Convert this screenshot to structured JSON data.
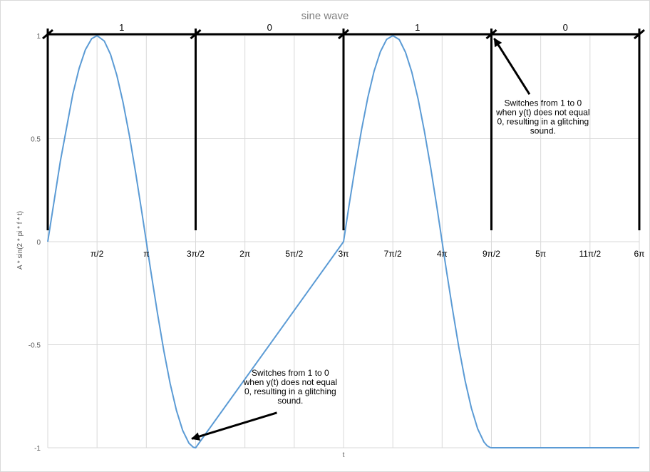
{
  "chart_data": {
    "type": "line",
    "title": "sine wave",
    "xlabel": "t",
    "ylabel": "A * sin(2 * pi * f * t)",
    "xlim": [
      0,
      18.85
    ],
    "ylim": [
      -1,
      1
    ],
    "y_ticks": [
      {
        "value": 1,
        "label": "1"
      },
      {
        "value": 0.5,
        "label": "0.5"
      },
      {
        "value": 0,
        "label": "0"
      },
      {
        "value": -0.5,
        "label": "-0.5"
      },
      {
        "value": -1,
        "label": "-1"
      }
    ],
    "x_ticks": [
      {
        "value": 1.5708,
        "label": "π/2"
      },
      {
        "value": 3.1416,
        "label": "π"
      },
      {
        "value": 4.7124,
        "label": "3π/2"
      },
      {
        "value": 6.2832,
        "label": "2π"
      },
      {
        "value": 7.854,
        "label": "5π/2"
      },
      {
        "value": 9.4248,
        "label": "3π"
      },
      {
        "value": 10.9956,
        "label": "7π/2"
      },
      {
        "value": 12.5664,
        "label": "4π"
      },
      {
        "value": 14.1372,
        "label": "9π/2"
      },
      {
        "value": 15.708,
        "label": "5π"
      },
      {
        "value": 17.2788,
        "label": "11π/2"
      },
      {
        "value": 18.8496,
        "label": "6π"
      }
    ],
    "grid": true,
    "legend": "none",
    "series": [
      {
        "x": [
          0,
          0.4,
          0.8,
          1.0,
          1.2,
          1.4,
          1.5708,
          1.8,
          2.0,
          2.2,
          2.4,
          2.6,
          2.8,
          3.0,
          3.1416,
          3.3,
          3.5,
          3.7,
          3.9,
          4.1,
          4.3,
          4.5,
          4.64,
          4.7124,
          9.4248,
          9.6,
          9.8,
          10.0,
          10.2,
          10.4,
          10.6,
          10.8,
          10.9956,
          11.2,
          11.4,
          11.6,
          11.8,
          12.0,
          12.2,
          12.4,
          12.5664,
          12.7,
          12.9,
          13.1,
          13.3,
          13.5,
          13.7,
          13.9,
          14.0,
          14.1,
          14.1372,
          18.8496
        ],
        "y": [
          0,
          0.389,
          0.717,
          0.841,
          0.932,
          0.985,
          1,
          0.974,
          0.909,
          0.808,
          0.675,
          0.516,
          0.335,
          0.141,
          0,
          -0.158,
          -0.351,
          -0.53,
          -0.688,
          -0.818,
          -0.916,
          -0.978,
          -0.998,
          -1,
          0,
          0.175,
          0.366,
          0.544,
          0.7,
          0.828,
          0.922,
          0.982,
          1,
          0.981,
          0.919,
          0.823,
          0.693,
          0.537,
          0.361,
          0.168,
          0,
          -0.136,
          -0.33,
          -0.513,
          -0.675,
          -0.808,
          -0.908,
          -0.972,
          -0.99,
          -0.999,
          -1,
          -1
        ]
      }
    ],
    "bit_segments": [
      {
        "start": 0,
        "end": 4.7124,
        "label": "1"
      },
      {
        "start": 4.7124,
        "end": 9.4248,
        "label": "0"
      },
      {
        "start": 9.4248,
        "end": 14.1372,
        "label": "1"
      },
      {
        "start": 14.1372,
        "end": 18.8496,
        "label": "0"
      }
    ],
    "annotations": [
      {
        "lines": [
          "Switches from 1 to 0",
          "when y(t) does not equal",
          "0, resulting in a glitching",
          "sound."
        ],
        "point": {
          "x": 14.1372,
          "y": 1.0
        },
        "text_at": {
          "x": 15.78,
          "y": 0.66
        }
      },
      {
        "lines": [
          "Switches from 1 to 0",
          "when y(t) does not equal",
          "0, resulting in a glitching",
          "sound."
        ],
        "point": {
          "x": 4.5,
          "y": -0.97
        },
        "text_at": {
          "x": 7.73,
          "y": -0.65
        }
      }
    ]
  }
}
